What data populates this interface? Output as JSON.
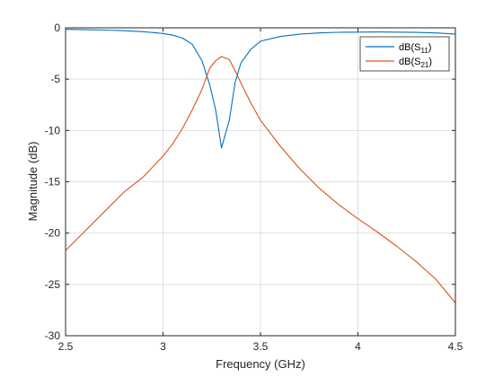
{
  "chart_data": {
    "type": "line",
    "xlabel": "Frequency (GHz)",
    "ylabel": "Magnitude (dB)",
    "xlim": [
      2.5,
      4.5
    ],
    "ylim": [
      -30,
      0
    ],
    "xticks": [
      2.5,
      3,
      3.5,
      4,
      4.5
    ],
    "xtick_labels": [
      "2.5",
      "3",
      "3.5",
      "4",
      "4.5"
    ],
    "yticks": [
      0,
      -5,
      -10,
      -15,
      -20,
      -25,
      -30
    ],
    "ytick_labels": [
      "0",
      "-5",
      "-10",
      "-15",
      "-20",
      "-25",
      "-30"
    ],
    "grid": true,
    "legend_position": "top-right",
    "series": [
      {
        "name": "dB(S11)",
        "legend_base": "dB(S",
        "legend_sub": "11",
        "legend_end": ")",
        "color": "#0072BD",
        "x": [
          2.5,
          2.6,
          2.7,
          2.8,
          2.9,
          3.0,
          3.05,
          3.1,
          3.15,
          3.2,
          3.24,
          3.27,
          3.3,
          3.34,
          3.37,
          3.4,
          3.45,
          3.5,
          3.6,
          3.7,
          3.8,
          3.9,
          4.0,
          4.1,
          4.2,
          4.3,
          4.4,
          4.5
        ],
        "y": [
          -0.15,
          -0.18,
          -0.22,
          -0.28,
          -0.38,
          -0.55,
          -0.72,
          -1.0,
          -1.6,
          -3.2,
          -5.6,
          -8.0,
          -11.7,
          -9.0,
          -5.3,
          -3.4,
          -2.1,
          -1.3,
          -0.85,
          -0.62,
          -0.5,
          -0.44,
          -0.42,
          -0.4,
          -0.42,
          -0.45,
          -0.5,
          -0.6
        ]
      },
      {
        "name": "dB(S21)",
        "legend_base": "dB(S",
        "legend_sub": "21",
        "legend_end": ")",
        "color": "#D95319",
        "x": [
          2.5,
          2.6,
          2.7,
          2.8,
          2.9,
          3.0,
          3.05,
          3.1,
          3.15,
          3.2,
          3.24,
          3.27,
          3.3,
          3.34,
          3.37,
          3.4,
          3.45,
          3.5,
          3.6,
          3.7,
          3.8,
          3.9,
          4.0,
          4.1,
          4.2,
          4.3,
          4.4,
          4.5
        ],
        "y": [
          -21.7,
          -19.8,
          -17.9,
          -16.0,
          -14.5,
          -12.5,
          -11.3,
          -9.8,
          -8.0,
          -6.0,
          -3.9,
          -3.2,
          -2.8,
          -3.1,
          -4.2,
          -5.4,
          -7.3,
          -9.0,
          -11.5,
          -13.7,
          -15.6,
          -17.2,
          -18.6,
          -19.9,
          -21.3,
          -22.8,
          -24.5,
          -26.8
        ]
      }
    ]
  }
}
